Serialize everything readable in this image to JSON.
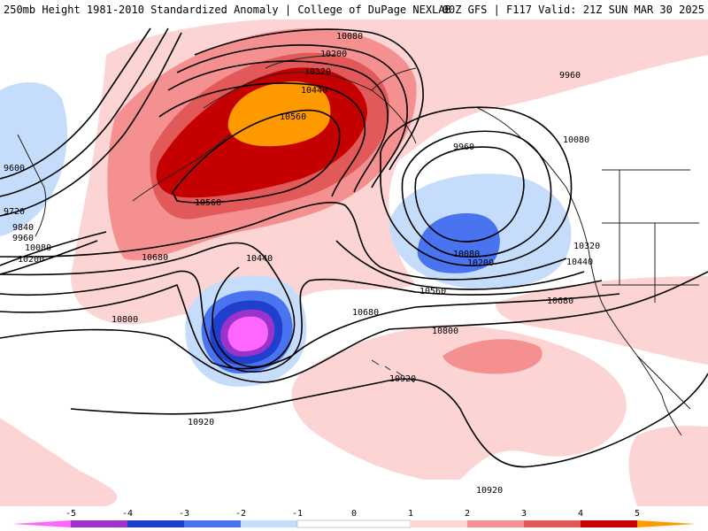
{
  "header": {
    "title": "250mb Height 1981-2010 Standardized Anomaly | College of DuPage NEXLAB",
    "run": "00Z GFS | F117 Valid: 21Z SUN MAR 30 2025"
  },
  "colors": {
    "n5": "#ff66ff",
    "n4": "#9933cc",
    "n3": "#1f3fcc",
    "n2": "#4a73f0",
    "n1": "#c6dcfb",
    "p1": "#fcd4d4",
    "p2": "#f49090",
    "p3": "#e25959",
    "p4": "#c40000",
    "p5": "#ff9900",
    "contour": "#000000",
    "coast": "#222222"
  },
  "contour_labels": [
    {
      "id": "l1",
      "text": "10080"
    },
    {
      "id": "l2",
      "text": "10200"
    },
    {
      "id": "l3",
      "text": "10320"
    },
    {
      "id": "l4",
      "text": "10440"
    },
    {
      "id": "l5",
      "text": "10560"
    },
    {
      "id": "l6",
      "text": "9960"
    },
    {
      "id": "l7",
      "text": "9960"
    },
    {
      "id": "l8",
      "text": "10080"
    },
    {
      "id": "l9",
      "text": "9600"
    },
    {
      "id": "l10",
      "text": "9720"
    },
    {
      "id": "l11",
      "text": "9840"
    },
    {
      "id": "l12",
      "text": "9960"
    },
    {
      "id": "l13",
      "text": "10080"
    },
    {
      "id": "l14",
      "text": "10200"
    },
    {
      "id": "l15",
      "text": "10560"
    },
    {
      "id": "l16",
      "text": "10680"
    },
    {
      "id": "l17",
      "text": "10440"
    },
    {
      "id": "l18",
      "text": "10080"
    },
    {
      "id": "l19",
      "text": "10200"
    },
    {
      "id": "l20",
      "text": "10320"
    },
    {
      "id": "l21",
      "text": "10440"
    },
    {
      "id": "l22",
      "text": "10560"
    },
    {
      "id": "l23",
      "text": "10680"
    },
    {
      "id": "l24",
      "text": "10680"
    },
    {
      "id": "l25",
      "text": "10800"
    },
    {
      "id": "l26",
      "text": "10800"
    },
    {
      "id": "l27",
      "text": "10920"
    },
    {
      "id": "l28",
      "text": "10920"
    },
    {
      "id": "l29",
      "text": "10920"
    }
  ],
  "legend": {
    "ticks": [
      "-5",
      "-4",
      "-3",
      "-2",
      "-1",
      "0",
      "1",
      "2",
      "3",
      "4",
      "5"
    ]
  }
}
